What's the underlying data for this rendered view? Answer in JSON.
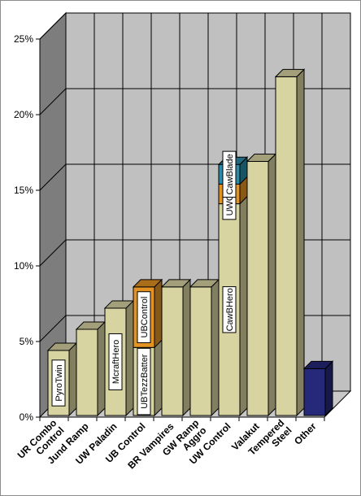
{
  "chart_data": {
    "type": "bar",
    "stacked": true,
    "three_d": true,
    "title": "",
    "xlabel": "",
    "ylabel": "",
    "ylim": [
      0,
      25
    ],
    "y_ticks": [
      "0%",
      "5%",
      "10%",
      "15%",
      "20%",
      "25%"
    ],
    "grid": true,
    "legend": "none",
    "colors": {
      "bar": "#d8d4a2",
      "orange": "#e39324",
      "teal": "#2a8ca8",
      "other": "#26287a",
      "back_wall": "#c0c0c0",
      "side_wall": "#7d7d7d",
      "floor": "#c8c8c8"
    },
    "categories": [
      {
        "name": "UR Combo Control",
        "lines": [
          "UR Combo",
          "Control"
        ],
        "segments": [
          {
            "value": 4.3,
            "label": "PyroTwin",
            "color": "bar"
          }
        ]
      },
      {
        "name": "Jund Ramp",
        "lines": [
          "Jund Ramp"
        ],
        "segments": [
          {
            "value": 5.7,
            "label": "",
            "color": "bar"
          }
        ]
      },
      {
        "name": "UW Paladin",
        "lines": [
          "UW Paladin"
        ],
        "segments": [
          {
            "value": 7.1,
            "label": "McraftHero",
            "color": "bar"
          }
        ]
      },
      {
        "name": "UB Control",
        "lines": [
          "UB Control"
        ],
        "segments": [
          {
            "value": 4.5,
            "label": "UBTezzBatter",
            "color": "bar"
          },
          {
            "value": 4.0,
            "label": "UBControl",
            "color": "orange"
          }
        ]
      },
      {
        "name": "BR Vampires",
        "lines": [
          "BR Vampires"
        ],
        "segments": [
          {
            "value": 8.5,
            "label": "",
            "color": "bar"
          }
        ]
      },
      {
        "name": "GW Ramp Aggro",
        "lines": [
          "GW Ramp",
          "Aggro"
        ],
        "segments": [
          {
            "value": 8.5,
            "label": "",
            "color": "bar"
          }
        ]
      },
      {
        "name": "UW Control",
        "lines": [
          "UW Control"
        ],
        "segments": [
          {
            "value": 14.0,
            "label": "CawBHero",
            "color": "bar"
          },
          {
            "value": 1.3,
            "label": "UWControl",
            "color": "orange"
          },
          {
            "value": 1.3,
            "label": "CawBlade",
            "color": "teal"
          }
        ]
      },
      {
        "name": "Valakut",
        "lines": [
          "Valakut"
        ],
        "segments": [
          {
            "value": 16.8,
            "label": "",
            "color": "bar"
          }
        ]
      },
      {
        "name": "Tempered Steel",
        "lines": [
          "Tempered",
          "Steel"
        ],
        "segments": [
          {
            "value": 22.4,
            "label": "",
            "color": "bar"
          }
        ]
      },
      {
        "name": "Other",
        "lines": [
          "Other"
        ],
        "segments": [
          {
            "value": 3.1,
            "label": "",
            "color": "other"
          }
        ]
      }
    ]
  }
}
